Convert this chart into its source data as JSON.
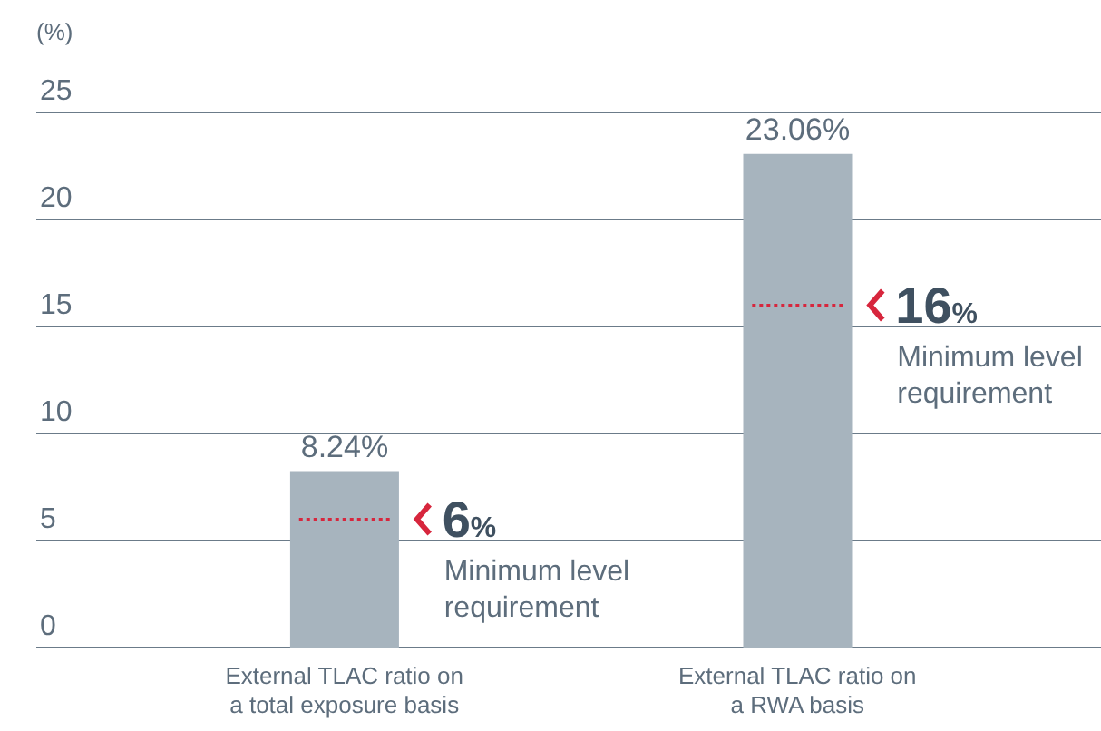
{
  "chart_data": {
    "type": "bar",
    "ylabel": "(%)",
    "categories": [
      "External TLAC ratio on a total exposure basis",
      "External TLAC ratio on a RWA basis"
    ],
    "values": [
      8.24,
      23.06
    ],
    "value_labels": [
      "8.24%",
      "23.06%"
    ],
    "color": "#a7b4be",
    "ylim": [
      0,
      25
    ],
    "yticks": [
      0,
      5,
      10,
      15,
      20,
      25
    ],
    "grid": "y",
    "ref_lines": [
      {
        "axis": "y",
        "value": 6,
        "label": "6%",
        "color": "#d7263d",
        "line_style": "dotted"
      },
      {
        "axis": "y",
        "value": 16,
        "label": "16%",
        "color": "#d7263d",
        "line_style": "dotted"
      }
    ],
    "annotations": [
      "Minimum level requirement",
      "Minimum level requirement"
    ]
  }
}
